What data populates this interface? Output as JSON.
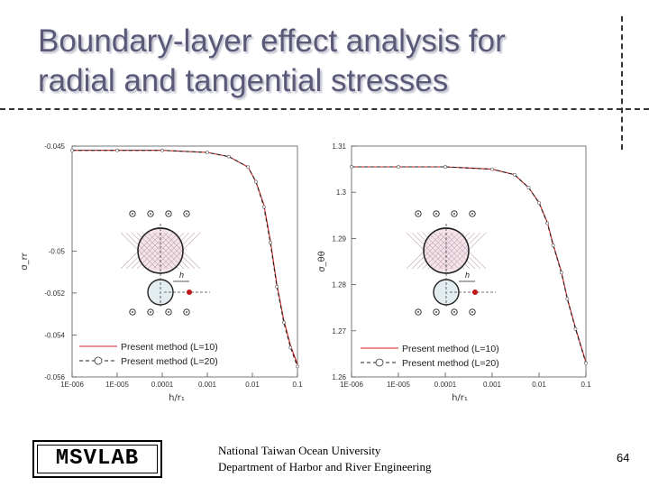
{
  "slide": {
    "title_line1": "Boundary-layer effect analysis for",
    "title_line2": "radial and tangential stresses",
    "logo_text": "MSVLAB",
    "footer_line1": "National Taiwan Ocean University",
    "footer_line2": "Department of Harbor and River Engineering",
    "page_number": "64"
  },
  "chart_data": [
    {
      "type": "line",
      "xscale": "log",
      "xlim": [
        1e-06,
        0.1
      ],
      "ylim": [
        -0.056,
        -0.045
      ],
      "x_tick_labels": [
        "1E-006",
        "1E-005",
        "0.0001",
        "0.001",
        "0.01",
        "0.1"
      ],
      "y_tick_labels": [
        "-0.045",
        "-0.05",
        "-0.052",
        "-0.054",
        "-0.056"
      ],
      "ylabel": "σ_rr",
      "xlabel": "h/r₁",
      "legend_position": "bottom-left",
      "series": [
        {
          "name": "Present method (L=10)",
          "color": "#cc2222",
          "style": "solid",
          "x": [
            1e-06,
            1e-05,
            0.0001,
            0.001,
            0.003,
            0.008,
            0.012,
            0.018,
            0.025,
            0.035,
            0.05,
            0.07,
            0.1
          ],
          "y": [
            -0.0452,
            -0.0452,
            -0.0452,
            -0.0453,
            -0.0455,
            -0.046,
            -0.0467,
            -0.0478,
            -0.0495,
            -0.0516,
            -0.0533,
            -0.0545,
            -0.0554
          ]
        },
        {
          "name": "Present method (L=20)",
          "color": "#222222",
          "style": "dashed",
          "x": [
            1e-06,
            1e-05,
            0.0001,
            0.001,
            0.003,
            0.008,
            0.012,
            0.018,
            0.025,
            0.035,
            0.05,
            0.07,
            0.1
          ],
          "y": [
            -0.0452,
            -0.0452,
            -0.0452,
            -0.0453,
            -0.0455,
            -0.046,
            -0.0467,
            -0.0479,
            -0.0496,
            -0.0517,
            -0.0534,
            -0.0546,
            -0.0555
          ]
        }
      ]
    },
    {
      "type": "line",
      "xscale": "log",
      "xlim": [
        1e-06,
        0.1
      ],
      "ylim": [
        1.26,
        1.31
      ],
      "x_tick_labels": [
        "1E-006",
        "1E-005",
        "0.0001",
        "0.001",
        "0.01",
        "0.1"
      ],
      "y_tick_labels": [
        "1.31",
        "1.3",
        "1.29",
        "1.28",
        "1.27",
        "1.26"
      ],
      "ylabel": "σ_θθ",
      "xlabel": "h/r₁",
      "legend_position": "bottom-left",
      "series": [
        {
          "name": "Present method (L=10)",
          "color": "#cc2222",
          "style": "solid",
          "x": [
            1e-06,
            1e-05,
            0.0001,
            0.001,
            0.003,
            0.006,
            0.01,
            0.015,
            0.02,
            0.03,
            0.04,
            0.06,
            0.1
          ],
          "y": [
            1.3055,
            1.3055,
            1.3055,
            1.305,
            1.3038,
            1.301,
            1.2978,
            1.2935,
            1.2887,
            1.2828,
            1.2771,
            1.2706,
            1.2632
          ]
        },
        {
          "name": "Present method (L=20)",
          "color": "#222222",
          "style": "dashed",
          "x": [
            1e-06,
            1e-05,
            0.0001,
            0.001,
            0.003,
            0.006,
            0.01,
            0.015,
            0.02,
            0.03,
            0.04,
            0.06,
            0.1
          ],
          "y": [
            1.3055,
            1.3055,
            1.3055,
            1.305,
            1.3038,
            1.301,
            1.2977,
            1.2933,
            1.2885,
            1.2826,
            1.2769,
            1.2704,
            1.263
          ]
        }
      ]
    }
  ]
}
